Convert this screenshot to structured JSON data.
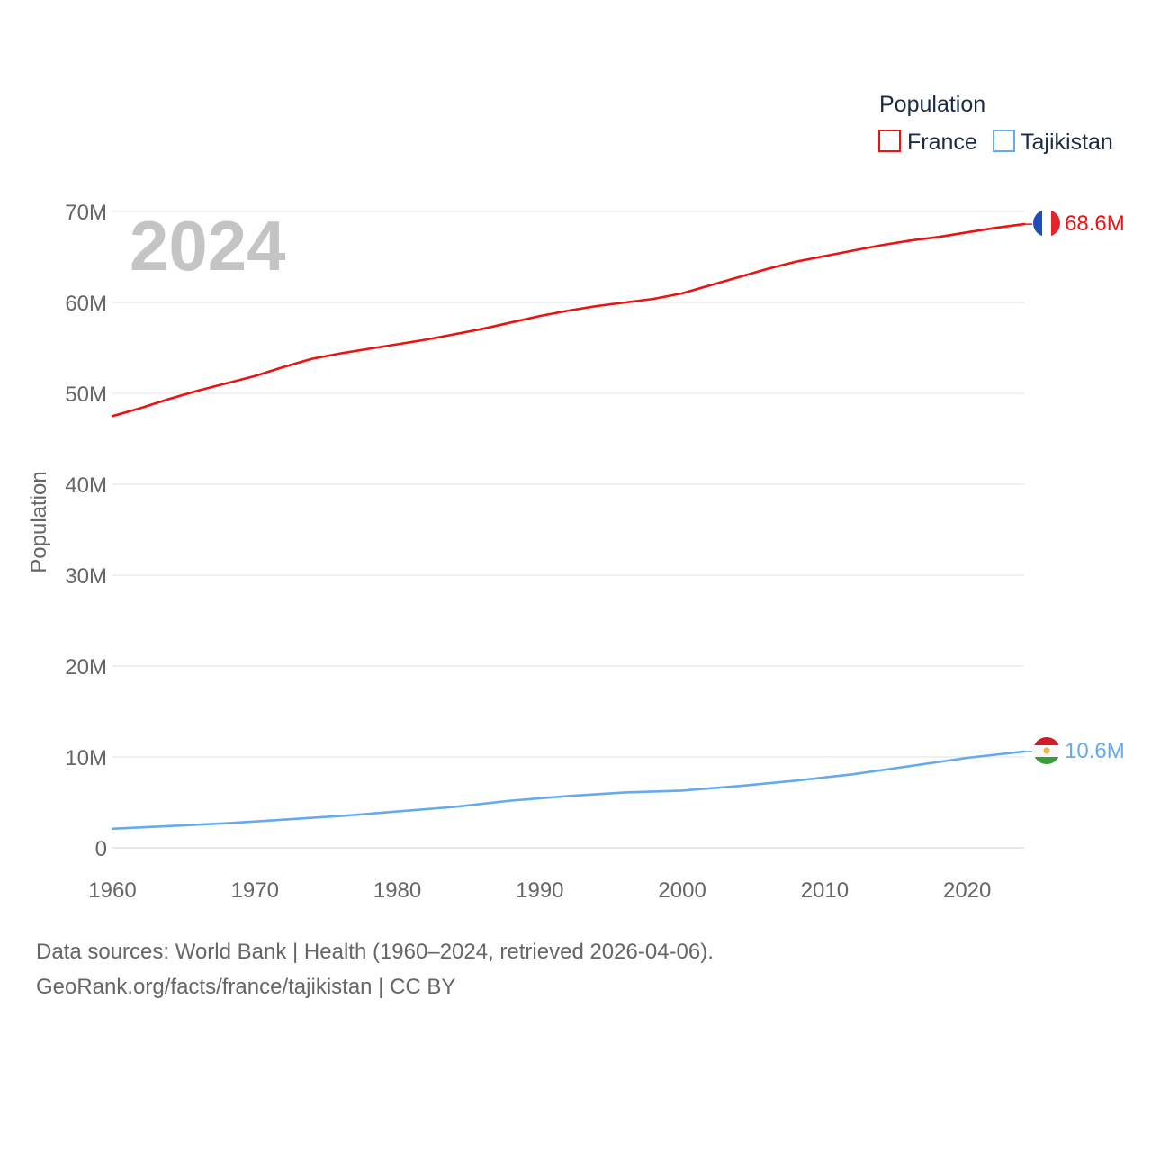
{
  "chart_data": {
    "type": "line",
    "watermark_year": "2024",
    "legend": {
      "title": "Population",
      "placement": "top-right"
    },
    "ylabel": "Population",
    "xlabel": "",
    "ylim": [
      0,
      70000000
    ],
    "xlim": [
      1960,
      2024
    ],
    "x_ticks": [
      1960,
      1970,
      1980,
      1990,
      2000,
      2010,
      2020
    ],
    "y_ticks": [
      {
        "value": 0,
        "label": "0"
      },
      {
        "value": 10000000,
        "label": "10M"
      },
      {
        "value": 20000000,
        "label": "20M"
      },
      {
        "value": 30000000,
        "label": "30M"
      },
      {
        "value": 40000000,
        "label": "40M"
      },
      {
        "value": 50000000,
        "label": "50M"
      },
      {
        "value": 60000000,
        "label": "60M"
      },
      {
        "value": 70000000,
        "label": "70M"
      }
    ],
    "grid": true,
    "series": [
      {
        "name": "France",
        "color": "#ee1111",
        "end_label": "68.6M",
        "flag": "france-flag-icon",
        "points": [
          [
            1960,
            47500000
          ],
          [
            1962,
            48400000
          ],
          [
            1964,
            49400000
          ],
          [
            1966,
            50300000
          ],
          [
            1968,
            51100000
          ],
          [
            1970,
            51900000
          ],
          [
            1972,
            52900000
          ],
          [
            1974,
            53800000
          ],
          [
            1976,
            54400000
          ],
          [
            1978,
            54900000
          ],
          [
            1980,
            55400000
          ],
          [
            1982,
            55900000
          ],
          [
            1984,
            56500000
          ],
          [
            1986,
            57100000
          ],
          [
            1988,
            57800000
          ],
          [
            1990,
            58500000
          ],
          [
            1992,
            59100000
          ],
          [
            1994,
            59600000
          ],
          [
            1996,
            60000000
          ],
          [
            1998,
            60400000
          ],
          [
            2000,
            61000000
          ],
          [
            2002,
            61900000
          ],
          [
            2004,
            62800000
          ],
          [
            2006,
            63700000
          ],
          [
            2008,
            64500000
          ],
          [
            2010,
            65100000
          ],
          [
            2012,
            65700000
          ],
          [
            2014,
            66300000
          ],
          [
            2016,
            66800000
          ],
          [
            2018,
            67200000
          ],
          [
            2020,
            67700000
          ],
          [
            2022,
            68200000
          ],
          [
            2024,
            68600000
          ]
        ]
      },
      {
        "name": "Tajikistan",
        "color": "#66aaee",
        "end_label": "10.6M",
        "flag": "tajikistan-flag-icon",
        "points": [
          [
            1960,
            2100000
          ],
          [
            1964,
            2400000
          ],
          [
            1968,
            2700000
          ],
          [
            1972,
            3100000
          ],
          [
            1976,
            3500000
          ],
          [
            1980,
            4000000
          ],
          [
            1984,
            4500000
          ],
          [
            1988,
            5200000
          ],
          [
            1992,
            5700000
          ],
          [
            1996,
            6100000
          ],
          [
            1998,
            6200000
          ],
          [
            2000,
            6300000
          ],
          [
            2004,
            6800000
          ],
          [
            2008,
            7400000
          ],
          [
            2012,
            8100000
          ],
          [
            2016,
            9000000
          ],
          [
            2020,
            9900000
          ],
          [
            2024,
            10600000
          ]
        ]
      }
    ]
  },
  "footer": {
    "line1": "Data sources: World Bank | Health (1960–2024, retrieved 2026-04-06).",
    "line2": "GeoRank.org/facts/france/tajikistan | CC BY"
  }
}
